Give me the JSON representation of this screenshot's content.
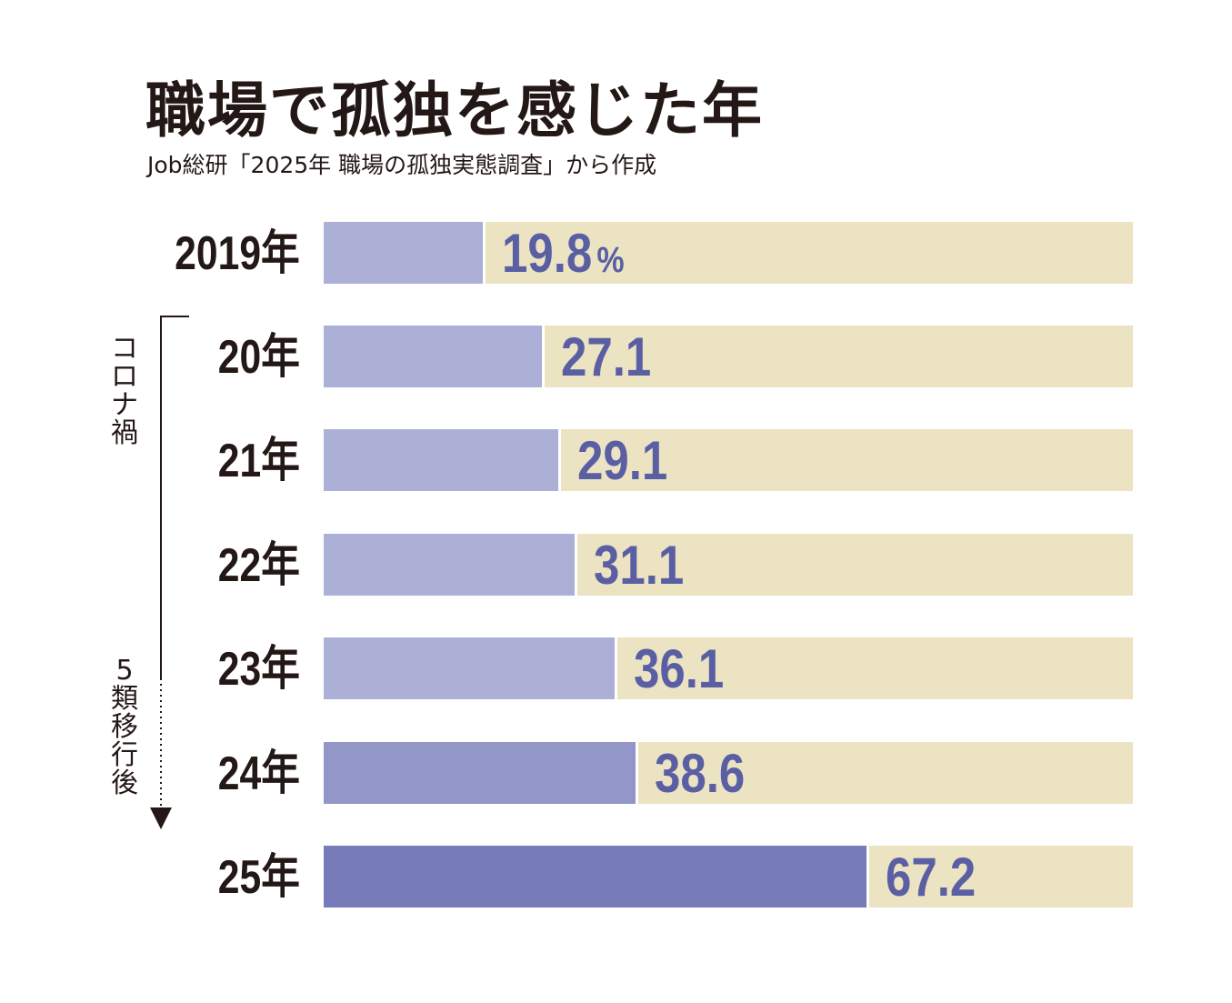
{
  "chart_data": {
    "type": "bar",
    "orientation": "horizontal",
    "title": "職場で孤独を感じた年",
    "source": "Job総研「2025年 職場の孤独実態調査」から作成",
    "unit": "%",
    "xlim": [
      0,
      100
    ],
    "categories": [
      "2019年",
      "20年",
      "21年",
      "22年",
      "23年",
      "24年",
      "25年"
    ],
    "values": [
      19.8,
      27.1,
      29.1,
      31.1,
      36.1,
      38.6,
      67.2
    ],
    "value_labels": [
      "19.8",
      "27.1",
      "29.1",
      "31.1",
      "36.1",
      "38.6",
      "67.2"
    ],
    "bar_colors": [
      "#adb0d6",
      "#adb0d6",
      "#adb0d6",
      "#adb0d6",
      "#adb0d6",
      "#9397c8",
      "#777bb9"
    ],
    "track_color": "#ebe3c2",
    "value_color": "#5a5fa4",
    "annotations": {
      "covid_label": "コロナ禍",
      "post_label": "5類移行後"
    }
  }
}
